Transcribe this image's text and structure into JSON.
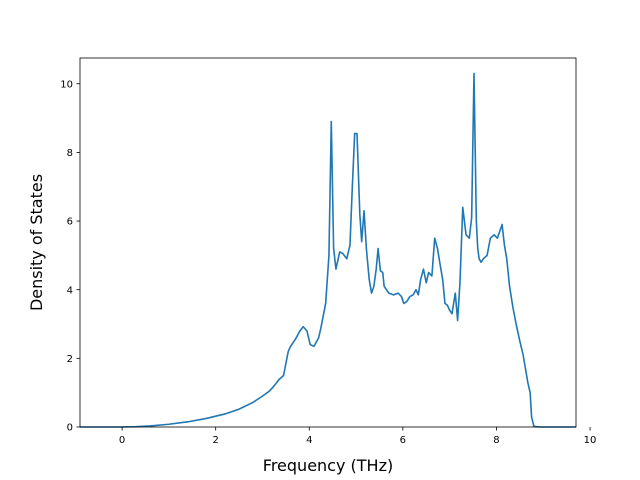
{
  "chart_data": {
    "type": "line",
    "title": "",
    "xlabel": "Frequency (THz)",
    "ylabel": "Density of States",
    "xlim": [
      -0.9,
      9.7
    ],
    "ylim": [
      0,
      10.75
    ],
    "x_ticks": [
      0,
      2,
      4,
      6,
      8,
      10
    ],
    "y_ticks": [
      0,
      2,
      4,
      6,
      8,
      10
    ],
    "grid": false,
    "legend": "none",
    "color": "#1f77b4",
    "series": [
      {
        "x": [
          -0.9,
          -0.5,
          0.0,
          0.3,
          0.6,
          1.0,
          1.4,
          1.8,
          2.2,
          2.5,
          2.8,
          3.0,
          3.15,
          3.25,
          3.35,
          3.45,
          3.55,
          3.6,
          3.7,
          3.8,
          3.87,
          3.95,
          4.02,
          4.1,
          4.2,
          4.25,
          4.35,
          4.42,
          4.47,
          4.52,
          4.57,
          4.65,
          4.72,
          4.8,
          4.87,
          4.92,
          4.97,
          5.02,
          5.08,
          5.12,
          5.17,
          5.22,
          5.28,
          5.33,
          5.38,
          5.43,
          5.47,
          5.52,
          5.57,
          5.6,
          5.7,
          5.8,
          5.9,
          5.97,
          6.02,
          6.08,
          6.15,
          6.22,
          6.28,
          6.33,
          6.38,
          6.44,
          6.5,
          6.55,
          6.62,
          6.68,
          6.74,
          6.8,
          6.85,
          6.9,
          6.95,
          7.0,
          7.05,
          7.12,
          7.17,
          7.22,
          7.28,
          7.35,
          7.42,
          7.47,
          7.52,
          7.57,
          7.6,
          7.63,
          7.67,
          7.72,
          7.8,
          7.87,
          7.95,
          8.02,
          8.07,
          8.12,
          8.17,
          8.22,
          8.28,
          8.35,
          8.42,
          8.5,
          8.57,
          8.62,
          8.67,
          8.72,
          8.75,
          8.8,
          8.9,
          9.2,
          9.7
        ],
        "y": [
          0,
          0,
          0,
          0.01,
          0.03,
          0.08,
          0.15,
          0.25,
          0.38,
          0.52,
          0.72,
          0.9,
          1.05,
          1.2,
          1.38,
          1.5,
          2.2,
          2.35,
          2.55,
          2.8,
          2.92,
          2.8,
          2.4,
          2.35,
          2.6,
          2.9,
          3.6,
          5.0,
          8.9,
          5.2,
          4.6,
          5.1,
          5.05,
          4.9,
          5.3,
          7.0,
          8.55,
          8.55,
          6.2,
          5.4,
          6.3,
          5.2,
          4.3,
          3.9,
          4.1,
          4.6,
          5.2,
          4.55,
          4.5,
          4.1,
          3.9,
          3.85,
          3.9,
          3.8,
          3.6,
          3.65,
          3.8,
          3.85,
          4.0,
          3.85,
          4.3,
          4.6,
          4.2,
          4.5,
          4.4,
          5.5,
          5.2,
          4.7,
          4.3,
          3.6,
          3.55,
          3.4,
          3.3,
          3.9,
          3.1,
          4.2,
          6.4,
          5.6,
          5.5,
          6.1,
          10.3,
          6.0,
          5.2,
          4.9,
          4.8,
          4.9,
          5.0,
          5.5,
          5.6,
          5.5,
          5.7,
          5.9,
          5.3,
          4.9,
          4.1,
          3.5,
          3.0,
          2.5,
          2.1,
          1.7,
          1.3,
          1.0,
          0.3,
          0.02,
          0,
          0,
          0
        ]
      }
    ]
  }
}
